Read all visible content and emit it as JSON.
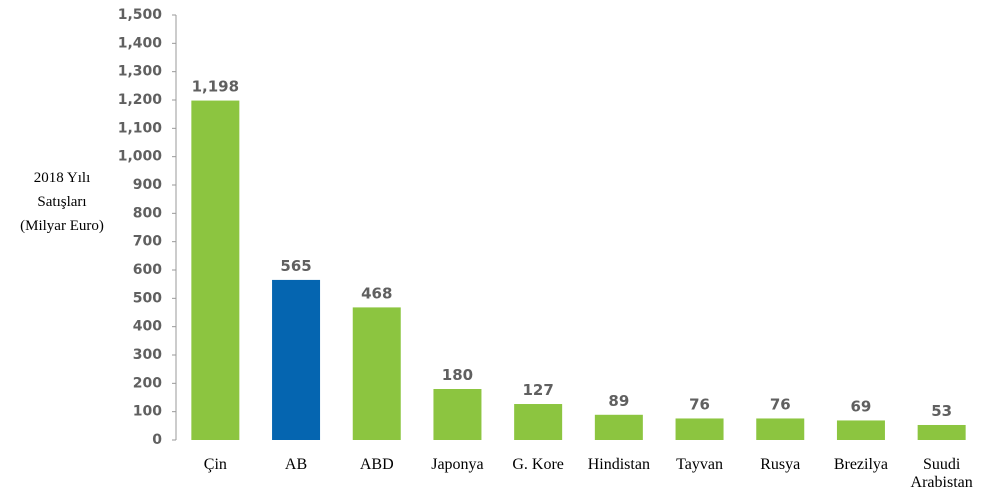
{
  "chart_data": {
    "type": "bar",
    "ylabel": [
      "2018 Yılı",
      "Satışları",
      "(Milyar Euro)"
    ],
    "categories": [
      "Çin",
      "AB",
      "ABD",
      "Japonya",
      "G. Kore",
      "Hindistan",
      "Tayvan",
      "Rusya",
      "Brezilya",
      "Suudi Arabistan"
    ],
    "values": [
      1198,
      565,
      468,
      180,
      127,
      89,
      76,
      76,
      69,
      53
    ],
    "value_labels": [
      "1,198",
      "565",
      "468",
      "180",
      "127",
      "89",
      "76",
      "76",
      "69",
      "53"
    ],
    "colors": [
      "#8cc540",
      "#0565b0",
      "#8cc540",
      "#8cc540",
      "#8cc540",
      "#8cc540",
      "#8cc540",
      "#8cc540",
      "#8cc540",
      "#8cc540"
    ],
    "ylim": [
      0,
      1500
    ],
    "yticks": [
      0,
      100,
      200,
      300,
      400,
      500,
      600,
      700,
      800,
      900,
      {
        "value": 1000,
        "label": "1,000"
      },
      {
        "value": 1100,
        "label": "1,100"
      },
      {
        "value": 1200,
        "label": "1,200"
      },
      {
        "value": 1300,
        "label": "1,300"
      },
      {
        "value": 1400,
        "label": "1,400"
      },
      {
        "value": 1500,
        "label": "1,500"
      }
    ],
    "grid": false
  }
}
